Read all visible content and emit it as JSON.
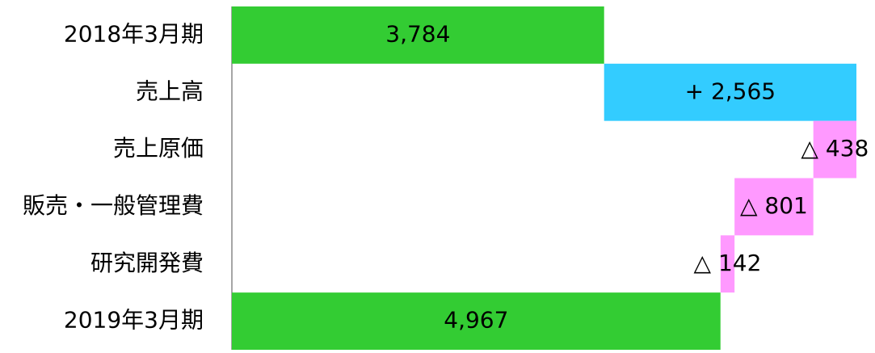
{
  "chart_data": {
    "type": "waterfall",
    "categories": [
      "2018年3月期",
      "売上高",
      "売上原価",
      "販売・一般管理費",
      "研究開発費",
      "2019年3月期"
    ],
    "values": [
      3784,
      2565,
      -438,
      -801,
      -142,
      4967
    ],
    "value_labels": [
      "3,784",
      "+ 2,565",
      "△ 438",
      "△ 801",
      "△ 142",
      "4,967"
    ],
    "measure": [
      "absolute",
      "relative",
      "relative",
      "relative",
      "relative",
      "absolute"
    ],
    "colors": [
      "#33cc33",
      "#33ccff",
      "#ff99ff",
      "#ff99ff",
      "#ff99ff",
      "#33cc33"
    ]
  }
}
